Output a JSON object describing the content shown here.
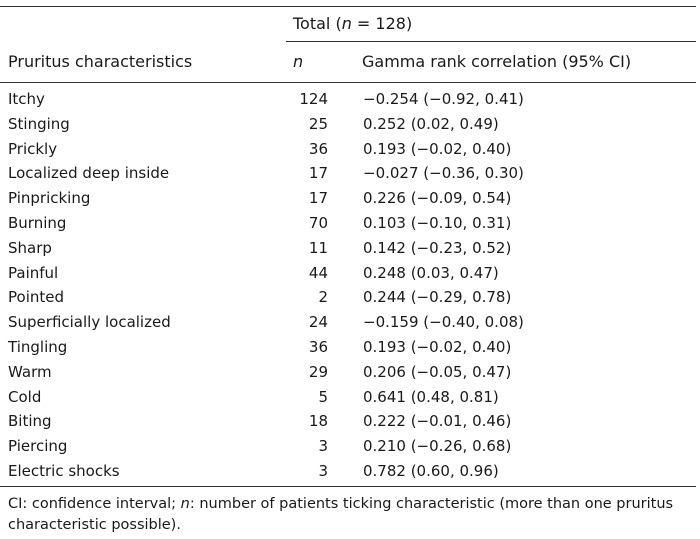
{
  "header": {
    "group_prefix": "Total (",
    "group_n": "n",
    "group_suffix": " = 128)",
    "col_characteristic": "Pruritus characteristics",
    "col_n": "n",
    "col_gamma": "Gamma rank correlation (95% CI)"
  },
  "rows": [
    {
      "name": "Itchy",
      "n": "124",
      "gamma": "−0.254 (−0.92, 0.41)"
    },
    {
      "name": "Stinging",
      "n": "25",
      "gamma": "0.252 (0.02, 0.49)"
    },
    {
      "name": "Prickly",
      "n": "36",
      "gamma": "0.193 (−0.02, 0.40)"
    },
    {
      "name": "Localized deep inside",
      "n": "17",
      "gamma": "−0.027 (−0.36, 0.30)"
    },
    {
      "name": "Pinpricking",
      "n": "17",
      "gamma": "0.226 (−0.09, 0.54)"
    },
    {
      "name": "Burning",
      "n": "70",
      "gamma": "0.103 (−0.10, 0.31)"
    },
    {
      "name": "Sharp",
      "n": "11",
      "gamma": "0.142 (−0.23, 0.52)"
    },
    {
      "name": "Painful",
      "n": "44",
      "gamma": "0.248 (0.03, 0.47)"
    },
    {
      "name": "Pointed",
      "n": "2",
      "gamma": "0.244 (−0.29, 0.78)"
    },
    {
      "name": "Superficially localized",
      "n": "24",
      "gamma": "−0.159 (−0.40, 0.08)"
    },
    {
      "name": "Tingling",
      "n": "36",
      "gamma": "0.193 (−0.02, 0.40)"
    },
    {
      "name": "Warm",
      "n": "29",
      "gamma": "0.206 (−0.05, 0.47)"
    },
    {
      "name": "Cold",
      "n": "5",
      "gamma": "0.641 (0.48, 0.81)"
    },
    {
      "name": "Biting",
      "n": "18",
      "gamma": "0.222 (−0.01, 0.46)"
    },
    {
      "name": "Piercing",
      "n": "3",
      "gamma": "0.210 (−0.26, 0.68)"
    },
    {
      "name": "Electric shocks",
      "n": "3",
      "gamma": "0.782 (0.60, 0.96)"
    }
  ],
  "footnote": {
    "part1": "CI: confidence interval; ",
    "n_symbol": "n",
    "part2": ": number of patients ticking characteristic (more than one pruritus characteristic possible)."
  }
}
